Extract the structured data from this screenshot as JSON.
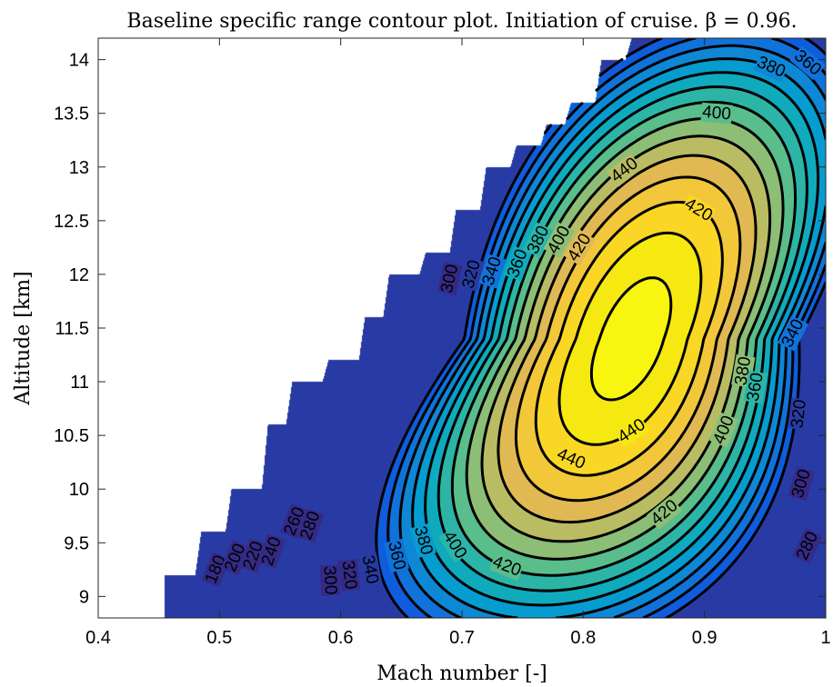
{
  "chart_data": {
    "type": "contour",
    "title": "Baseline specific range contour plot. Initiation of cruise. β = 0.96.",
    "xlabel": "Mach number [-]",
    "ylabel": "Altitude [km]",
    "xlim": [
      0.4,
      1.0
    ],
    "ylim": [
      8.8,
      14.2
    ],
    "x_ticks": [
      "0.4",
      "0.5",
      "0.6",
      "0.7",
      "0.8",
      "0.9",
      "1"
    ],
    "y_ticks": [
      "9",
      "9.5",
      "10",
      "10.5",
      "11",
      "11.5",
      "12",
      "12.5",
      "13",
      "13.5",
      "14"
    ],
    "grid": false,
    "colormap": "parula",
    "levels": [
      180,
      200,
      220,
      240,
      260,
      280,
      300,
      320,
      340,
      360,
      380,
      400,
      420,
      440
    ],
    "peak": {
      "mach": 0.84,
      "altitude": 11.4,
      "value": 450
    },
    "feasible_boundary": [
      [
        0.455,
        8.8
      ],
      [
        0.455,
        9.2
      ],
      [
        0.48,
        9.2
      ],
      [
        0.485,
        9.6
      ],
      [
        0.505,
        9.6
      ],
      [
        0.51,
        10.0
      ],
      [
        0.535,
        10.0
      ],
      [
        0.54,
        10.6
      ],
      [
        0.555,
        10.6
      ],
      [
        0.56,
        11.0
      ],
      [
        0.585,
        11.0
      ],
      [
        0.59,
        11.2
      ],
      [
        0.615,
        11.2
      ],
      [
        0.62,
        11.6
      ],
      [
        0.635,
        11.6
      ],
      [
        0.64,
        12.0
      ],
      [
        0.665,
        12.0
      ],
      [
        0.67,
        12.2
      ],
      [
        0.69,
        12.2
      ],
      [
        0.695,
        12.6
      ],
      [
        0.715,
        12.6
      ],
      [
        0.72,
        13.0
      ],
      [
        0.74,
        13.0
      ],
      [
        0.745,
        13.2
      ],
      [
        0.765,
        13.2
      ],
      [
        0.77,
        13.4
      ],
      [
        0.785,
        13.4
      ],
      [
        0.79,
        13.6
      ],
      [
        0.81,
        13.6
      ],
      [
        0.815,
        14.0
      ],
      [
        0.835,
        14.0
      ],
      [
        0.84,
        14.2
      ],
      [
        1.0,
        14.2
      ],
      [
        1.0,
        8.8
      ]
    ],
    "contour_labels": [
      {
        "text": "180",
        "x": 0.497,
        "y": 9.25
      },
      {
        "text": "200",
        "x": 0.513,
        "y": 9.36
      },
      {
        "text": "220",
        "x": 0.528,
        "y": 9.38
      },
      {
        "text": "240",
        "x": 0.543,
        "y": 9.42
      },
      {
        "text": "260",
        "x": 0.562,
        "y": 9.7
      },
      {
        "text": "280",
        "x": 0.575,
        "y": 9.66
      },
      {
        "text": "300",
        "x": 0.591,
        "y": 9.15
      },
      {
        "text": "320",
        "x": 0.607,
        "y": 9.2
      },
      {
        "text": "340",
        "x": 0.624,
        "y": 9.25
      },
      {
        "text": "360",
        "x": 0.646,
        "y": 9.38
      },
      {
        "text": "380",
        "x": 0.668,
        "y": 9.52
      },
      {
        "text": "400",
        "x": 0.694,
        "y": 9.48
      },
      {
        "text": "420",
        "x": 0.737,
        "y": 9.28
      },
      {
        "text": "420",
        "x": 0.867,
        "y": 9.78
      },
      {
        "text": "440",
        "x": 0.84,
        "y": 10.54
      },
      {
        "text": "440",
        "x": 0.79,
        "y": 10.28
      },
      {
        "text": "400",
        "x": 0.916,
        "y": 10.55
      },
      {
        "text": "380",
        "x": 0.932,
        "y": 11.1
      },
      {
        "text": "360",
        "x": 0.942,
        "y": 10.95
      },
      {
        "text": "340",
        "x": 0.973,
        "y": 11.45
      },
      {
        "text": "320",
        "x": 0.978,
        "y": 10.7
      },
      {
        "text": "300",
        "x": 0.98,
        "y": 10.05
      },
      {
        "text": "280",
        "x": 0.985,
        "y": 9.47
      },
      {
        "text": "300",
        "x": 0.69,
        "y": 11.96
      },
      {
        "text": "320",
        "x": 0.708,
        "y": 12.0
      },
      {
        "text": "340",
        "x": 0.725,
        "y": 12.03
      },
      {
        "text": "360",
        "x": 0.746,
        "y": 12.1
      },
      {
        "text": "380",
        "x": 0.763,
        "y": 12.32
      },
      {
        "text": "400",
        "x": 0.78,
        "y": 12.32
      },
      {
        "text": "420",
        "x": 0.797,
        "y": 12.25
      },
      {
        "text": "440",
        "x": 0.834,
        "y": 12.97
      },
      {
        "text": "420",
        "x": 0.895,
        "y": 12.6
      },
      {
        "text": "400",
        "x": 0.91,
        "y": 13.5
      },
      {
        "text": "380",
        "x": 0.955,
        "y": 13.93
      },
      {
        "text": "360",
        "x": 0.985,
        "y": 13.97
      }
    ]
  }
}
